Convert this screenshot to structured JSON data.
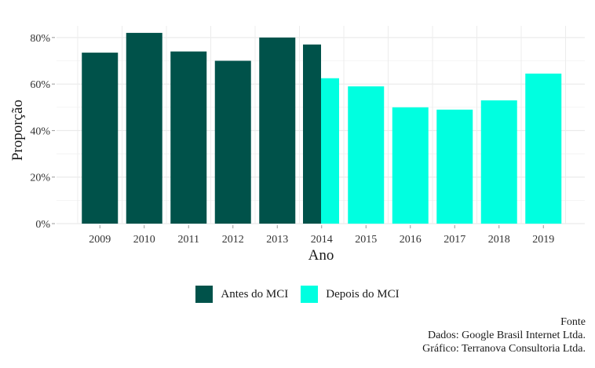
{
  "chart_data": {
    "type": "bar",
    "categories": [
      "2009",
      "2010",
      "2011",
      "2012",
      "2013",
      "2014",
      "2015",
      "2016",
      "2017",
      "2018",
      "2019"
    ],
    "bars": [
      {
        "category": "2009",
        "group": "Antes do MCI",
        "value": 73.5
      },
      {
        "category": "2010",
        "group": "Antes do MCI",
        "value": 82
      },
      {
        "category": "2011",
        "group": "Antes do MCI",
        "value": 74
      },
      {
        "category": "2012",
        "group": "Antes do MCI",
        "value": 70
      },
      {
        "category": "2013",
        "group": "Antes do MCI",
        "value": 80
      },
      {
        "category": "2014",
        "group": "Antes do MCI",
        "value": 77
      },
      {
        "category": "2014",
        "group": "Depois do MCI",
        "value": 62.5
      },
      {
        "category": "2015",
        "group": "Depois do MCI",
        "value": 59
      },
      {
        "category": "2016",
        "group": "Depois do MCI",
        "value": 50
      },
      {
        "category": "2017",
        "group": "Depois do MCI",
        "value": 49
      },
      {
        "category": "2018",
        "group": "Depois do MCI",
        "value": 53
      },
      {
        "category": "2019",
        "group": "Depois do MCI",
        "value": 64.5
      }
    ],
    "xlabel": "Ano",
    "ylabel": "Proporção",
    "ylim": [
      0,
      85
    ],
    "yticks": [
      0,
      20,
      40,
      60,
      80
    ],
    "ytick_labels": [
      "0%",
      "20%",
      "40%",
      "60%",
      "80%"
    ],
    "grid": true,
    "legend": {
      "position": "bottom",
      "entries": [
        {
          "label": "Antes do MCI",
          "color": "#00524a"
        },
        {
          "label": "Depois do MCI",
          "color": "#00ffe0"
        }
      ]
    }
  },
  "caption": {
    "line1": "Fonte",
    "line2": "Dados: Google Brasil Internet Ltda.",
    "line3": "Gráfico: Terranova Consultoria Ltda."
  }
}
